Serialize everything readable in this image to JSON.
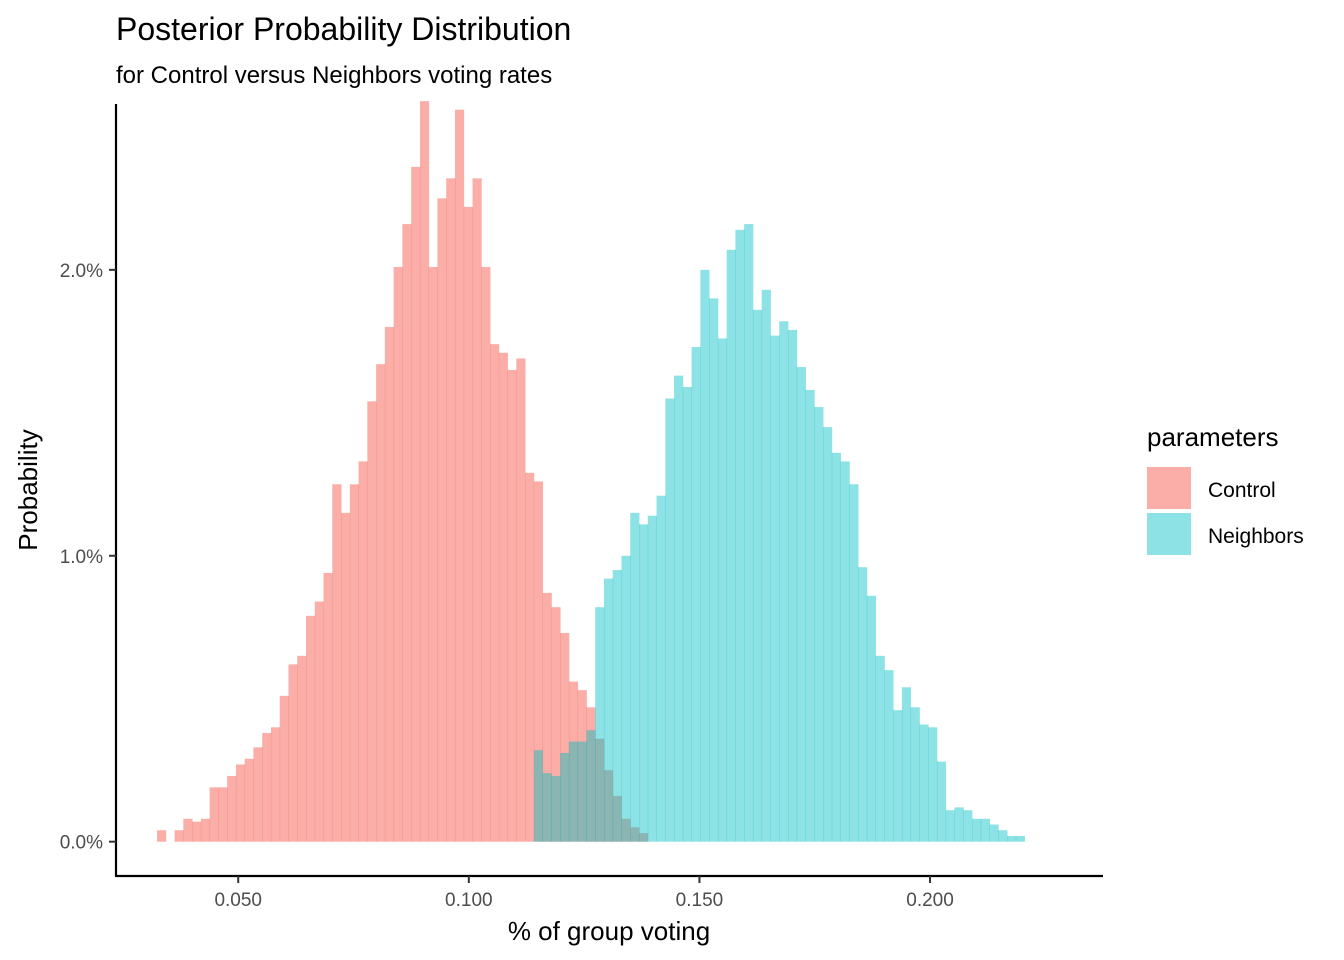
{
  "chart_data": {
    "type": "histogram",
    "title": "Posterior Probability Distribution",
    "subtitle": "for Control versus Neighbors voting rates",
    "xlabel": "% of group voting",
    "ylabel": "Probability",
    "xlim": [
      0.0235,
      0.2375
    ],
    "ylim": [
      -0.0012,
      0.0258
    ],
    "bin_width": 0.0019,
    "x_ticks": [
      0.05,
      0.1,
      0.15,
      0.2
    ],
    "x_tick_labels": [
      "0.050",
      "0.100",
      "0.150",
      "0.200"
    ],
    "y_ticks": [
      0.0,
      0.01,
      0.02
    ],
    "y_tick_labels": [
      "0.0%",
      "1.0%",
      "2.0%"
    ],
    "grid": false,
    "legend_title": "parameters",
    "legend_position": "right",
    "overlap_blend": "semi-transparent fills overlap, producing a darker gray-teal region",
    "series": [
      {
        "name": "Control",
        "color": "#F8766D",
        "opacity": 0.6,
        "x_start": 0.0324,
        "values": [
          0.0004,
          0.0,
          0.0004,
          0.0008,
          0.0007,
          0.0008,
          0.0019,
          0.0019,
          0.0023,
          0.0027,
          0.0029,
          0.0033,
          0.0038,
          0.004,
          0.0051,
          0.0062,
          0.0065,
          0.0079,
          0.0084,
          0.0094,
          0.0125,
          0.0115,
          0.0125,
          0.0133,
          0.0154,
          0.0167,
          0.018,
          0.0201,
          0.0216,
          0.0236,
          0.0259,
          0.0201,
          0.0225,
          0.0232,
          0.0256,
          0.0222,
          0.0232,
          0.0201,
          0.0174,
          0.0171,
          0.0165,
          0.0169,
          0.0129,
          0.0126,
          0.0087,
          0.0082,
          0.0073,
          0.0056,
          0.0053,
          0.0047,
          0.0036,
          0.0025,
          0.0016,
          0.0008,
          0.0005,
          0.0003,
          0.0
        ]
      },
      {
        "name": "Neighbors",
        "color": "#00BFC4",
        "opacity": 0.45,
        "x_start": 0.1141,
        "values": [
          0.0032,
          0.0024,
          0.0023,
          0.0031,
          0.0035,
          0.0035,
          0.0039,
          0.0082,
          0.0092,
          0.0095,
          0.01,
          0.0115,
          0.0111,
          0.0114,
          0.0121,
          0.0155,
          0.0163,
          0.0159,
          0.0173,
          0.02,
          0.019,
          0.0176,
          0.0207,
          0.0214,
          0.0216,
          0.0186,
          0.0193,
          0.0177,
          0.0182,
          0.0179,
          0.0166,
          0.0158,
          0.0152,
          0.0145,
          0.0136,
          0.0133,
          0.0125,
          0.0096,
          0.0086,
          0.0065,
          0.006,
          0.0046,
          0.0054,
          0.0047,
          0.0041,
          0.004,
          0.0028,
          0.0011,
          0.0012,
          0.0011,
          0.0008,
          0.0008,
          0.0006,
          0.0004,
          0.0002,
          0.0002,
          0.0
        ]
      }
    ]
  }
}
